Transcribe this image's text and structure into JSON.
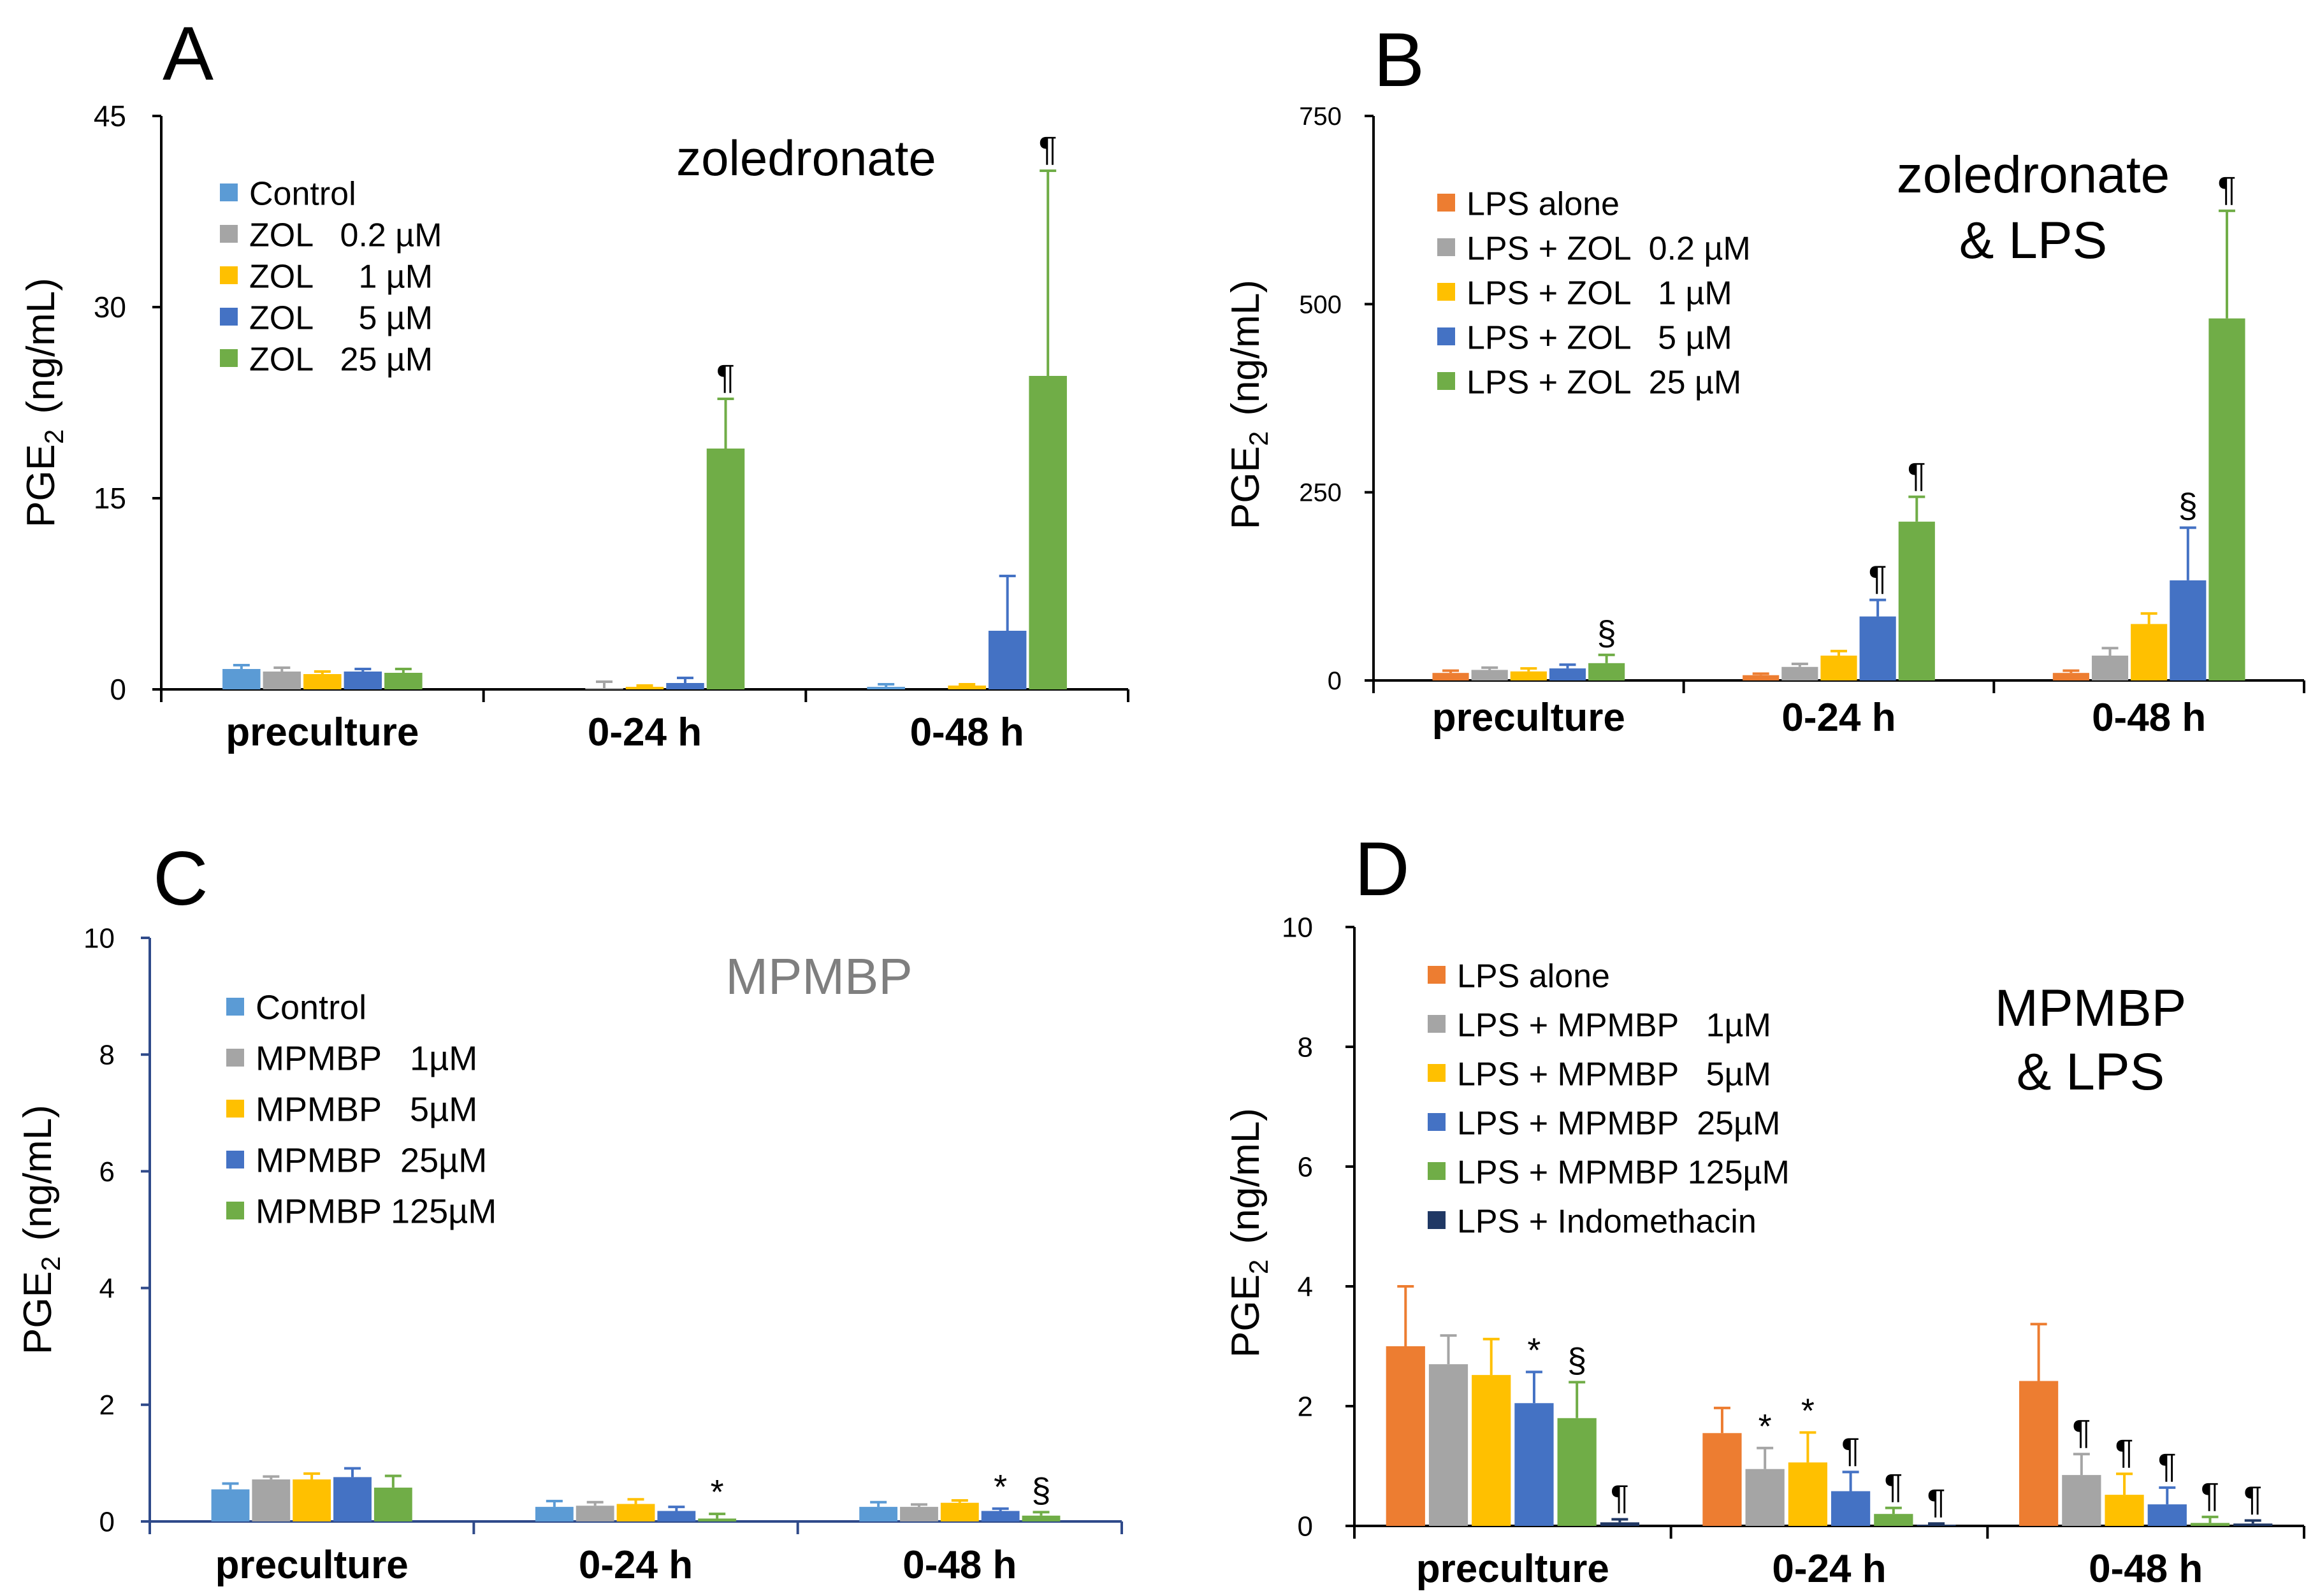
{
  "colors": {
    "Control": "#5B9BD5",
    "orange": "#ED7D31",
    "gray": "#A5A5A5",
    "yellow": "#FFC000",
    "blue": "#4472C4",
    "green": "#70AD47",
    "navy": "#203864",
    "axis_ab": "#000000",
    "axis_c": "#2F4A8A",
    "muted_title": "#7F7F7F"
  },
  "chart_data": [
    {
      "panel": "A",
      "type": "bar",
      "title": "zoledronate",
      "ylabel_main": "PGE",
      "ylabel_sub": "2",
      "ylabel_unit": "(ng/mL)",
      "ylim": [
        0,
        45
      ],
      "yticks": [
        0,
        15,
        30,
        45
      ],
      "categories": [
        "preculture",
        "0-24 h",
        "0-48 h"
      ],
      "legend_position": "top-left",
      "series": [
        {
          "name": "Control",
          "color": "#5B9BD5",
          "values": [
            1.6,
            0.0,
            0.2
          ],
          "errors": [
            0.3,
            0.0,
            0.2
          ],
          "marks": [
            "",
            "",
            ""
          ]
        },
        {
          "name": "ZOL   0.2 µM",
          "color": "#A5A5A5",
          "values": [
            1.4,
            0.1,
            0.0
          ],
          "errors": [
            0.3,
            0.5,
            0.0
          ],
          "marks": [
            "",
            "",
            ""
          ]
        },
        {
          "name": "ZOL     1 µM",
          "color": "#FFC000",
          "values": [
            1.2,
            0.2,
            0.3
          ],
          "errors": [
            0.2,
            0.1,
            0.1
          ],
          "marks": [
            "",
            "",
            ""
          ]
        },
        {
          "name": "ZOL     5 µM",
          "color": "#4472C4",
          "values": [
            1.4,
            0.5,
            4.6
          ],
          "errors": [
            0.2,
            0.4,
            4.3
          ],
          "marks": [
            "",
            "",
            ""
          ]
        },
        {
          "name": "ZOL   25 µM",
          "color": "#70AD47",
          "values": [
            1.3,
            18.9,
            24.6
          ],
          "errors": [
            0.3,
            3.9,
            16.1
          ],
          "marks": [
            "",
            "¶",
            "¶"
          ]
        }
      ]
    },
    {
      "panel": "B",
      "type": "bar",
      "title": "zoledronate",
      "title2": "& LPS",
      "ylabel_main": "PGE",
      "ylabel_sub": "2",
      "ylabel_unit": "(ng/mL)",
      "ylim": [
        0,
        750
      ],
      "yticks": [
        0,
        250,
        500,
        750
      ],
      "categories": [
        "preculture",
        "0-24 h",
        "0-48 h"
      ],
      "legend_position": "top-left",
      "series": [
        {
          "name": "LPS alone",
          "color": "#ED7D31",
          "values": [
            10,
            7,
            10
          ],
          "errors": [
            3,
            2,
            3
          ],
          "marks": [
            "",
            "",
            ""
          ]
        },
        {
          "name": "LPS + ZOL  0.2 µM",
          "color": "#A5A5A5",
          "values": [
            14,
            18,
            33
          ],
          "errors": [
            3,
            4,
            10
          ],
          "marks": [
            "",
            "",
            ""
          ]
        },
        {
          "name": "LPS + ZOL   1 µM",
          "color": "#FFC000",
          "values": [
            12,
            33,
            75
          ],
          "errors": [
            4,
            6,
            14
          ],
          "marks": [
            "",
            "",
            ""
          ]
        },
        {
          "name": "LPS + ZOL   5 µM",
          "color": "#4472C4",
          "values": [
            16,
            85,
            133
          ],
          "errors": [
            5,
            22,
            70
          ],
          "marks": [
            "",
            "¶",
            "§"
          ]
        },
        {
          "name": "LPS + ZOL  25 µM",
          "color": "#70AD47",
          "values": [
            23,
            211,
            481
          ],
          "errors": [
            11,
            33,
            143
          ],
          "marks": [
            "§",
            "¶",
            "¶"
          ]
        }
      ]
    },
    {
      "panel": "C",
      "type": "bar",
      "title": "MPMBP",
      "ylabel_main": "PGE",
      "ylabel_sub": "2",
      "ylabel_unit": "(ng/mL)",
      "ylim": [
        0,
        10
      ],
      "yticks": [
        0,
        2,
        4,
        6,
        8,
        10
      ],
      "categories": [
        "preculture",
        "0-24 h",
        "0-48 h"
      ],
      "legend_position": "top-left",
      "series": [
        {
          "name": "Control",
          "color": "#5B9BD5",
          "values": [
            0.55,
            0.25,
            0.25
          ],
          "errors": [
            0.1,
            0.1,
            0.08
          ],
          "marks": [
            "",
            "",
            ""
          ]
        },
        {
          "name": "MPMBP   1µM",
          "color": "#A5A5A5",
          "values": [
            0.72,
            0.27,
            0.25
          ],
          "errors": [
            0.05,
            0.06,
            0.04
          ],
          "marks": [
            "",
            "",
            ""
          ]
        },
        {
          "name": "MPMBP   5µM",
          "color": "#FFC000",
          "values": [
            0.72,
            0.3,
            0.32
          ],
          "errors": [
            0.1,
            0.08,
            0.04
          ],
          "marks": [
            "",
            "",
            ""
          ]
        },
        {
          "name": "MPMBP  25µM",
          "color": "#4472C4",
          "values": [
            0.76,
            0.18,
            0.18
          ],
          "errors": [
            0.15,
            0.07,
            0.04
          ],
          "marks": [
            "",
            "",
            "*"
          ]
        },
        {
          "name": "MPMBP 125µM",
          "color": "#70AD47",
          "values": [
            0.58,
            0.05,
            0.1
          ],
          "errors": [
            0.2,
            0.08,
            0.06
          ],
          "marks": [
            "",
            "*",
            "§"
          ]
        }
      ]
    },
    {
      "panel": "D",
      "type": "bar",
      "title": "MPMBP",
      "title2": "& LPS",
      "ylabel_main": "PGE",
      "ylabel_sub": "2",
      "ylabel_unit": "(ng/mL)",
      "ylim": [
        0,
        10
      ],
      "yticks": [
        0,
        2,
        4,
        6,
        8,
        10
      ],
      "categories": [
        "preculture",
        "0-24 h",
        "0-48 h"
      ],
      "legend_position": "top-left",
      "series": [
        {
          "name": "LPS alone",
          "color": "#ED7D31",
          "values": [
            3.0,
            1.55,
            2.42
          ],
          "errors": [
            1.0,
            0.42,
            0.95
          ],
          "marks": [
            "",
            "",
            ""
          ]
        },
        {
          "name": "LPS + MPMBP   1µM",
          "color": "#A5A5A5",
          "values": [
            2.7,
            0.95,
            0.85
          ],
          "errors": [
            0.48,
            0.35,
            0.35
          ],
          "marks": [
            "",
            "*",
            "¶"
          ]
        },
        {
          "name": "LPS + MPMBP   5µM",
          "color": "#FFC000",
          "values": [
            2.52,
            1.06,
            0.52
          ],
          "errors": [
            0.6,
            0.5,
            0.35
          ],
          "marks": [
            "",
            "*",
            "¶"
          ]
        },
        {
          "name": "LPS + MPMBP  25µM",
          "color": "#4472C4",
          "values": [
            2.05,
            0.58,
            0.36
          ],
          "errors": [
            0.52,
            0.32,
            0.28
          ],
          "marks": [
            "*",
            "¶",
            "¶"
          ]
        },
        {
          "name": "LPS + MPMBP 125µM",
          "color": "#70AD47",
          "values": [
            1.8,
            0.2,
            0.05
          ],
          "errors": [
            0.6,
            0.1,
            0.1
          ],
          "marks": [
            "§",
            "¶",
            "¶"
          ]
        },
        {
          "name": "LPS + Indomethacin",
          "color": "#203864",
          "values": [
            0.06,
            0.02,
            0.04
          ],
          "errors": [
            0.05,
            0.02,
            0.05
          ],
          "marks": [
            "¶",
            "¶",
            "¶"
          ]
        }
      ]
    }
  ]
}
